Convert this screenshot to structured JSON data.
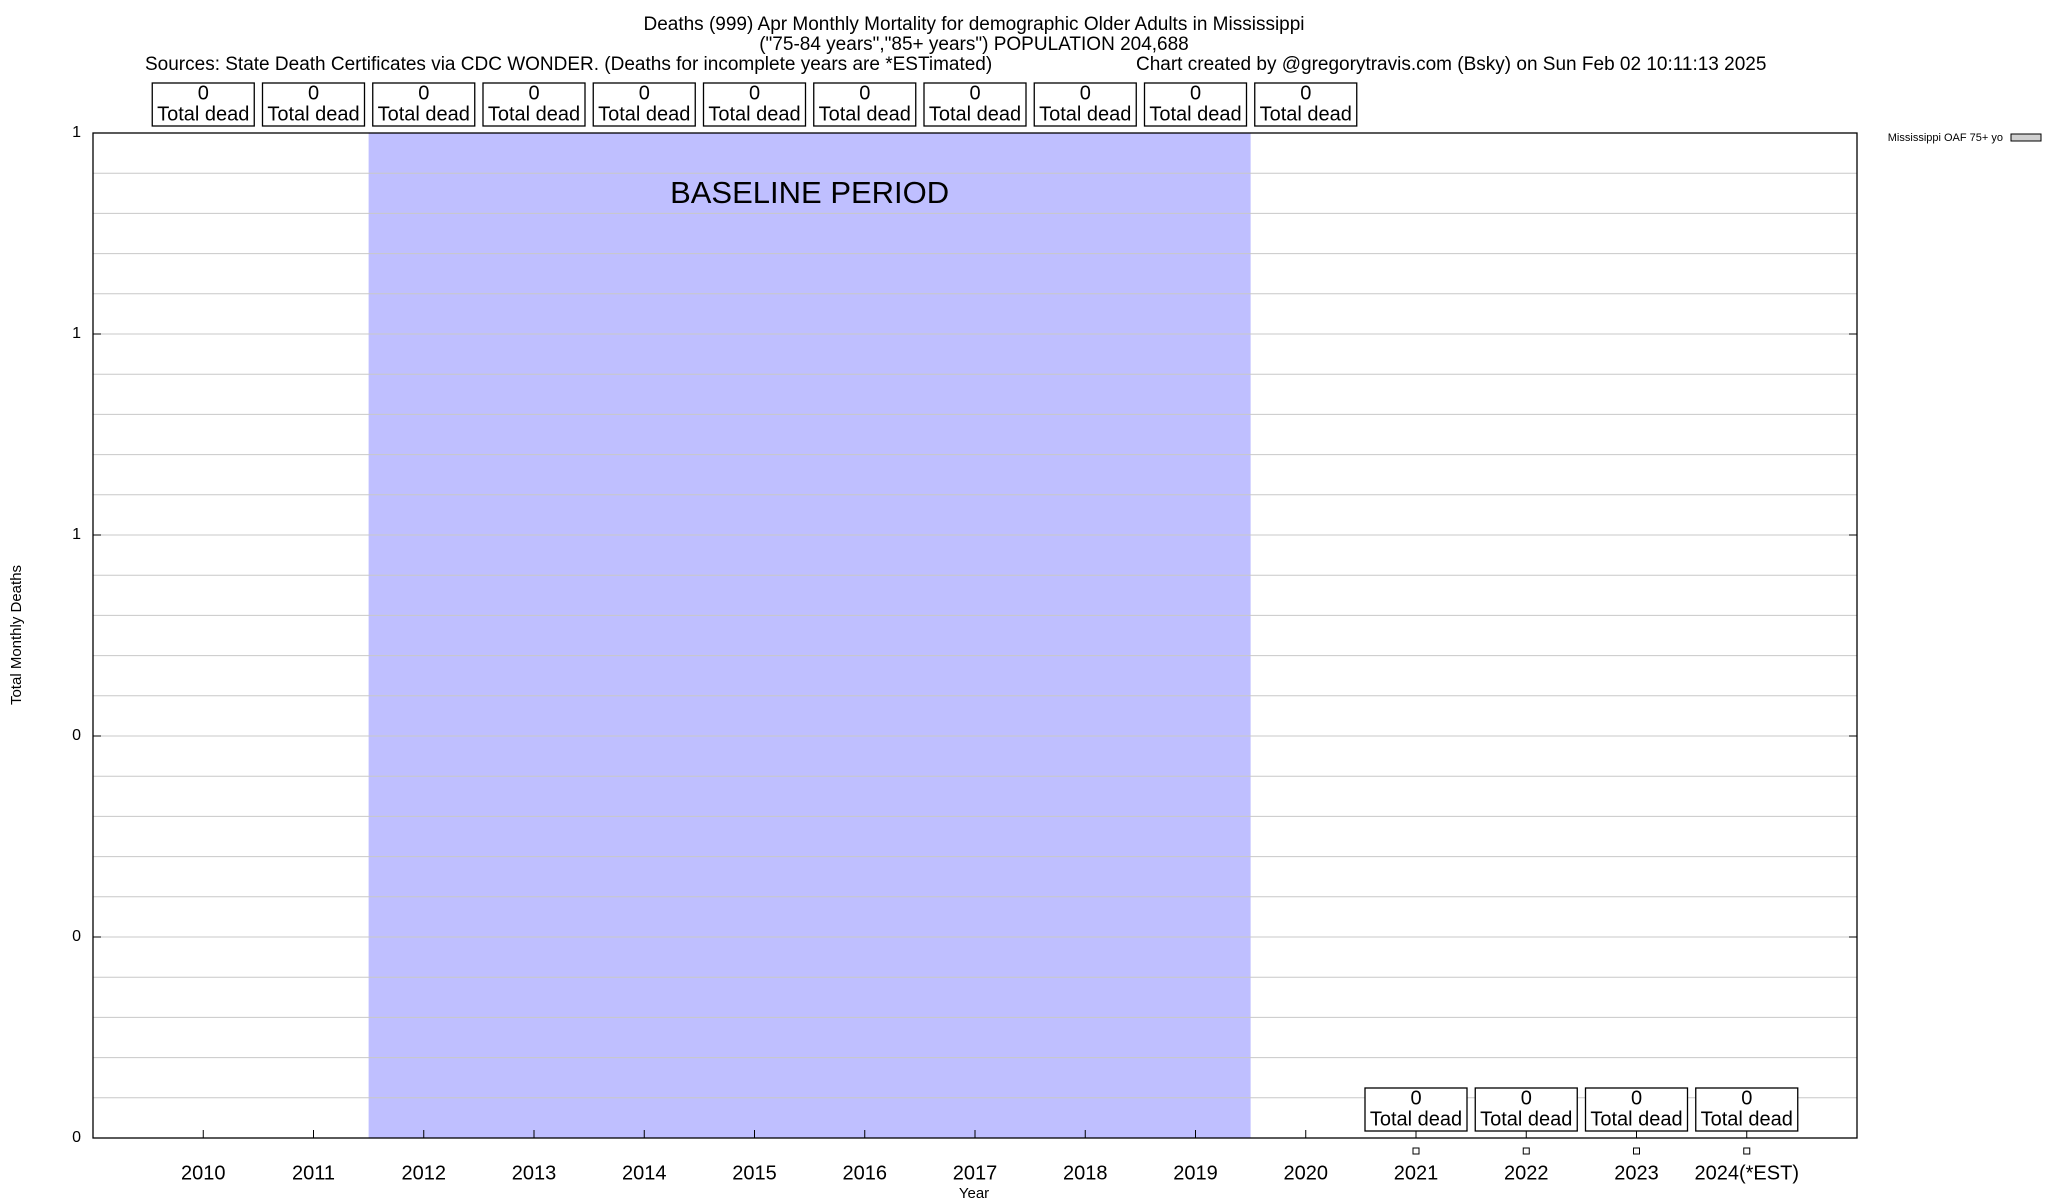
{
  "chart_data": {
    "type": "bar",
    "title": "Deaths (999) Apr Monthly Mortality for demographic Older Adults in Mississippi",
    "subtitle": "(\"75-84 years\",\"85+ years\") POPULATION 204,688",
    "sources": "Sources: State Death Certificates via CDC WONDER. (Deaths for incomplete years are *ESTimated)",
    "credit": "Chart created by @gregorytravis.com (Bsky) on Sun Feb 02 10:11:13 2025",
    "x_label": "Year",
    "y_label": "Total Monthly Deaths",
    "categories": [
      "2010",
      "2011",
      "2012",
      "2013",
      "2014",
      "2015",
      "2016",
      "2017",
      "2018",
      "2019",
      "2020",
      "2021",
      "2022",
      "2023",
      "2024(*EST)"
    ],
    "series": [
      {
        "name": "Mississippi OAF 75+ yo",
        "color": "#d0d0d0",
        "values": [
          0,
          0,
          0,
          0,
          0,
          0,
          0,
          0,
          0,
          0,
          0,
          0,
          0,
          0,
          0
        ],
        "value_labels": [
          "0",
          "0",
          "0",
          "0",
          "0",
          "0",
          "0",
          "0",
          "0",
          "0",
          "0",
          "0",
          "0",
          "0",
          "0"
        ]
      }
    ],
    "value_label_caption": "Total dead",
    "baseline": {
      "label": "BASELINE PERIOD",
      "from": "2012",
      "to": "2019",
      "color": "#bfbfff"
    },
    "ylim": [
      0,
      1
    ],
    "yticks": [
      {
        "value": 0,
        "label": "0"
      },
      {
        "value": 0.2,
        "label": "0"
      },
      {
        "value": 0.4,
        "label": "0"
      },
      {
        "value": 0.6,
        "label": "1"
      },
      {
        "value": 0.8,
        "label": "1"
      },
      {
        "value": 1,
        "label": "1"
      }
    ],
    "grid": true,
    "legend": "top right"
  }
}
